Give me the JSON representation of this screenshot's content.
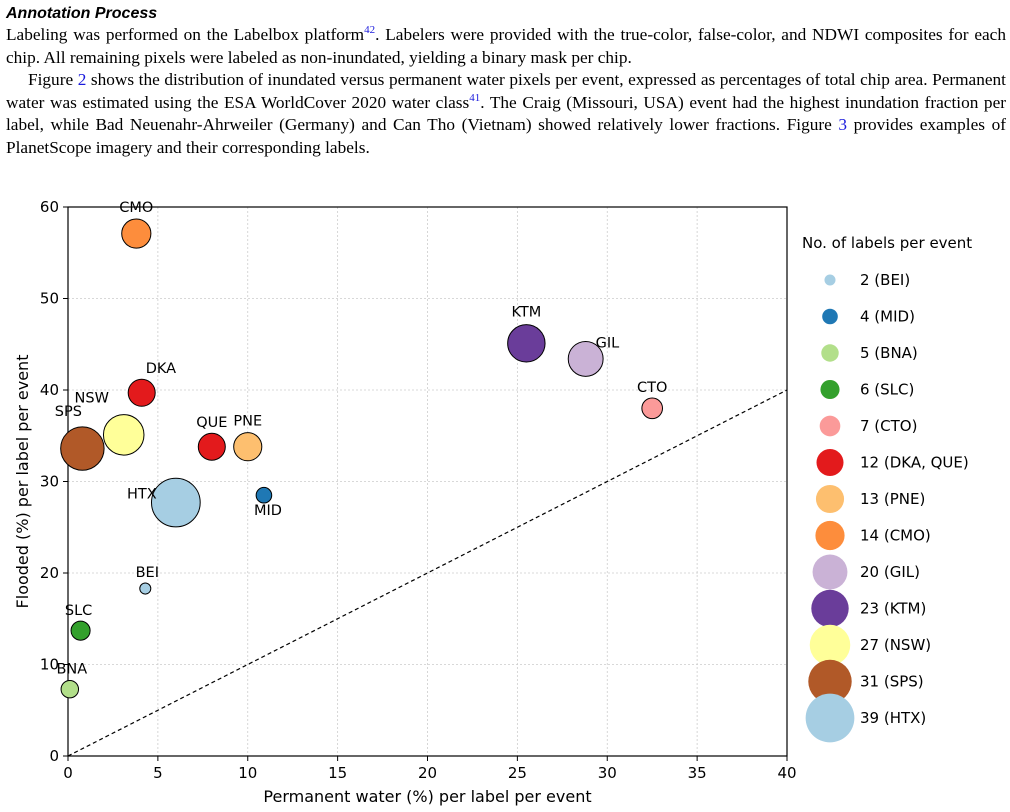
{
  "section": {
    "heading": "Annotation Process",
    "paragraphs": [
      {
        "parts": [
          {
            "t": "Labeling was performed on the Labelbox platform"
          },
          {
            "t": "42",
            "cite": true
          },
          {
            "t": ". Labelers were provided with the true-color, false-color, and NDWI composites for each chip. All remaining pixels were labeled as non-inundated, yielding a binary mask per chip."
          }
        ]
      },
      {
        "indent": true,
        "parts": [
          {
            "t": "Figure "
          },
          {
            "t": "2",
            "link": true
          },
          {
            "t": " shows the distribution of inundated versus permanent water pixels per event, expressed as percentages of total chip area. Permanent water was estimated using the ESA WorldCover 2020 water class"
          },
          {
            "t": "41",
            "cite": true
          },
          {
            "t": ". The Craig (Missouri, USA) event had the highest inundation fraction per label, while Bad Neuenahr-Ahrweiler (Germany) and Can Tho (Vietnam) showed relatively lower fractions. Figure "
          },
          {
            "t": "3",
            "link": true
          },
          {
            "t": " provides examples of PlanetScope imagery and their corresponding labels."
          }
        ]
      }
    ]
  },
  "chart_data": {
    "type": "scatter",
    "xlabel": "Permanent water (%) per label per event",
    "ylabel": "Flooded (%) per label per event",
    "xlim": [
      0,
      40
    ],
    "ylim": [
      0,
      60
    ],
    "xticks": [
      0,
      5,
      10,
      15,
      20,
      25,
      30,
      35,
      40
    ],
    "yticks": [
      0,
      10,
      20,
      30,
      40,
      50,
      60
    ],
    "grid": true,
    "reference_line": "y = x (dashed)",
    "legend_title": "No. of labels per event",
    "legend_position": "right",
    "points": [
      {
        "label": "CMO",
        "x": 3.8,
        "y": 57.1,
        "n": 14,
        "color": "#fd8d3c"
      },
      {
        "label": "KTM",
        "x": 25.5,
        "y": 45.1,
        "n": 23,
        "color": "#6a3d9a"
      },
      {
        "label": "GIL",
        "x": 28.8,
        "y": 43.4,
        "n": 20,
        "color": "#cab2d6"
      },
      {
        "label": "DKA",
        "x": 4.1,
        "y": 39.7,
        "n": 12,
        "color": "#e31a1c"
      },
      {
        "label": "CTO",
        "x": 32.5,
        "y": 38.0,
        "n": 7,
        "color": "#fb9a99"
      },
      {
        "label": "NSW",
        "x": 3.1,
        "y": 35.1,
        "n": 27,
        "color": "#ffff99"
      },
      {
        "label": "SPS",
        "x": 0.8,
        "y": 33.6,
        "n": 31,
        "color": "#b15928"
      },
      {
        "label": "QUE",
        "x": 8.0,
        "y": 33.8,
        "n": 12,
        "color": "#e31a1c"
      },
      {
        "label": "PNE",
        "x": 10.0,
        "y": 33.8,
        "n": 13,
        "color": "#fdbf6f"
      },
      {
        "label": "HTX",
        "x": 6.0,
        "y": 27.7,
        "n": 39,
        "color": "#a6cee3"
      },
      {
        "label": "MID",
        "x": 10.9,
        "y": 28.5,
        "n": 4,
        "color": "#1f78b4"
      },
      {
        "label": "BEI",
        "x": 4.3,
        "y": 18.3,
        "n": 2,
        "color": "#a6cee3"
      },
      {
        "label": "SLC",
        "x": 0.7,
        "y": 13.7,
        "n": 6,
        "color": "#33a02c"
      },
      {
        "label": "BNA",
        "x": 0.1,
        "y": 7.3,
        "n": 5,
        "color": "#b2df8a"
      }
    ],
    "legend": [
      {
        "text": "2 (BEI)",
        "n": 2,
        "color": "#a6cee3"
      },
      {
        "text": "4 (MID)",
        "n": 4,
        "color": "#1f78b4"
      },
      {
        "text": "5 (BNA)",
        "n": 5,
        "color": "#b2df8a"
      },
      {
        "text": "6 (SLC)",
        "n": 6,
        "color": "#33a02c"
      },
      {
        "text": "7 (CTO)",
        "n": 7,
        "color": "#fb9a99"
      },
      {
        "text": "12 (DKA, QUE)",
        "n": 12,
        "color": "#e31a1c"
      },
      {
        "text": "13 (PNE)",
        "n": 13,
        "color": "#fdbf6f"
      },
      {
        "text": "14 (CMO)",
        "n": 14,
        "color": "#fd8d3c"
      },
      {
        "text": "20 (GIL)",
        "n": 20,
        "color": "#cab2d6"
      },
      {
        "text": "23 (KTM)",
        "n": 23,
        "color": "#6a3d9a"
      },
      {
        "text": "27 (NSW)",
        "n": 27,
        "color": "#ffff99"
      },
      {
        "text": "31 (SPS)",
        "n": 31,
        "color": "#b15928"
      },
      {
        "text": "39 (HTX)",
        "n": 39,
        "color": "#a6cee3"
      }
    ]
  }
}
